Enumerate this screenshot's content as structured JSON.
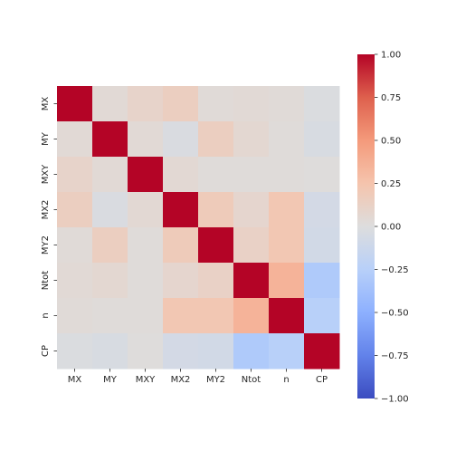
{
  "chart_data": {
    "type": "heatmap",
    "title": "",
    "xlabel": "",
    "ylabel": "",
    "x_categories": [
      "MX",
      "MY",
      "MXY",
      "MX2",
      "MY2",
      "Ntot",
      "n",
      "CP"
    ],
    "y_categories": [
      "MX",
      "MY",
      "MXY",
      "MX2",
      "MY2",
      "Ntot",
      "n",
      "CP"
    ],
    "matrix": [
      [
        1.0,
        0.04,
        0.1,
        0.15,
        0.03,
        0.04,
        0.03,
        -0.02
      ],
      [
        0.04,
        1.0,
        0.04,
        -0.03,
        0.15,
        0.06,
        0.02,
        -0.04
      ],
      [
        0.1,
        0.04,
        1.0,
        0.05,
        0.02,
        0.02,
        0.02,
        0.01
      ],
      [
        0.15,
        -0.03,
        0.05,
        1.0,
        0.18,
        0.08,
        0.22,
        -0.07
      ],
      [
        0.03,
        0.15,
        0.02,
        0.18,
        1.0,
        0.12,
        0.22,
        -0.08
      ],
      [
        0.04,
        0.06,
        0.02,
        0.08,
        0.12,
        1.0,
        0.35,
        -0.3
      ],
      [
        0.03,
        0.02,
        0.02,
        0.22,
        0.22,
        0.35,
        1.0,
        -0.25
      ],
      [
        -0.02,
        -0.04,
        0.01,
        -0.07,
        -0.08,
        -0.3,
        -0.25,
        1.0
      ]
    ],
    "colormap": "coolwarm",
    "vmin": -1.0,
    "vmax": 1.0,
    "colorbar": {
      "ticks": [
        1.0,
        0.75,
        0.5,
        0.25,
        0.0,
        -0.25,
        -0.5,
        -0.75,
        -1.0
      ],
      "tick_labels": [
        "1.00",
        "0.75",
        "0.50",
        "0.25",
        "0.00",
        "−0.25",
        "−0.50",
        "−0.75",
        "−1.00"
      ]
    },
    "colors": {
      "max": "#b40426",
      "mid": "#dddddd",
      "min": "#3b4cc0"
    }
  }
}
